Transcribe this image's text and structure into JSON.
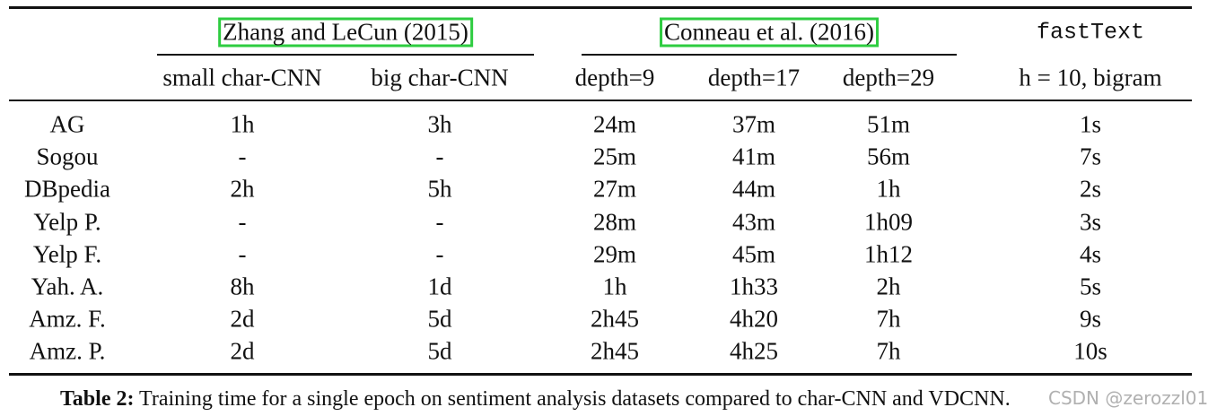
{
  "table": {
    "group_headers": [
      "Zhang and LeCun (2015)",
      "Conneau et al. (2016)",
      "fastText"
    ],
    "column_headers": [
      "small char-CNN",
      "big char-CNN",
      "depth=9",
      "depth=17",
      "depth=29",
      "h = 10, bigram"
    ],
    "rows": [
      [
        "AG",
        "1h",
        "3h",
        "24m",
        "37m",
        "51m",
        "1s"
      ],
      [
        "Sogou",
        "-",
        "-",
        "25m",
        "41m",
        "56m",
        "7s"
      ],
      [
        "DBpedia",
        "2h",
        "5h",
        "27m",
        "44m",
        "1h",
        "2s"
      ],
      [
        "Yelp P.",
        "-",
        "-",
        "28m",
        "43m",
        "1h09",
        "3s"
      ],
      [
        "Yelp F.",
        "-",
        "-",
        "29m",
        "45m",
        "1h12",
        "4s"
      ],
      [
        "Yah. A.",
        "8h",
        "1d",
        "1h",
        "1h33",
        "2h",
        "5s"
      ],
      [
        "Amz. F.",
        "2d",
        "5d",
        "2h45",
        "4h20",
        "7h",
        "9s"
      ],
      [
        "Amz. P.",
        "2d",
        "5d",
        "2h45",
        "4h25",
        "7h",
        "10s"
      ]
    ]
  },
  "caption": {
    "label": "Table 2:",
    "text": "Training time for a single epoch on sentiment analysis datasets compared to char-CNN and VDCNN."
  },
  "watermark": "CSDN @zerozzl01"
}
